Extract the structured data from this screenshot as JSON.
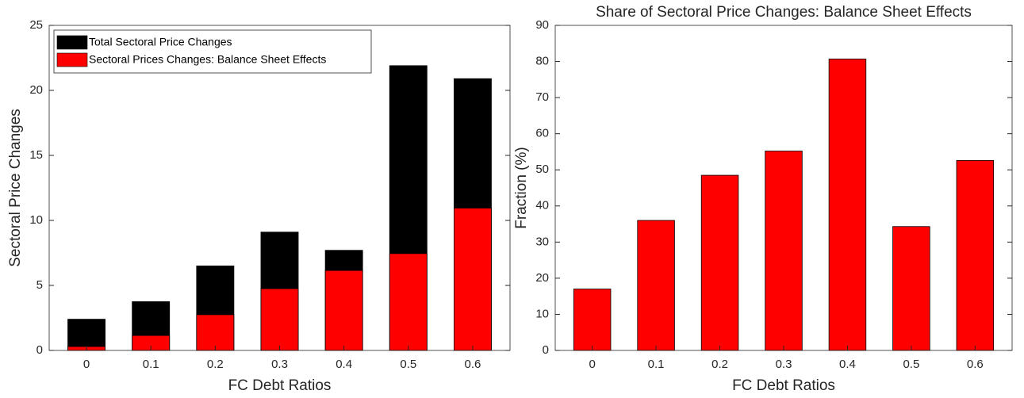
{
  "chart_data": [
    {
      "type": "bar",
      "overlay": true,
      "xlabel": "FC Debt Ratios",
      "ylabel": "Sectoral Price Changes",
      "categories": [
        "0",
        "0.1",
        "0.2",
        "0.3",
        "0.4",
        "0.5",
        "0.6"
      ],
      "series": [
        {
          "name": "Total Sectoral Price Changes",
          "color": "#000000",
          "values": [
            2.4,
            3.75,
            6.5,
            9.1,
            7.7,
            21.9,
            20.9
          ]
        },
        {
          "name": "Sectoral Prices Changes: Balance Sheet Effects",
          "color": "#ff0000",
          "values": [
            0.3,
            1.15,
            2.75,
            4.75,
            6.15,
            7.45,
            10.95
          ]
        }
      ],
      "ylim": [
        0,
        25
      ],
      "yticks": [
        0,
        5,
        10,
        15,
        20,
        25
      ],
      "legend": "northwest"
    },
    {
      "type": "bar",
      "title": "Share of Sectoral Price Changes: Balance Sheet Effects",
      "xlabel": "FC Debt Ratios",
      "ylabel": "Fraction (%)",
      "categories": [
        "0",
        "0.1",
        "0.2",
        "0.3",
        "0.4",
        "0.5",
        "0.6"
      ],
      "series": [
        {
          "color": "#ff0000",
          "values": [
            17,
            36,
            48.5,
            55.2,
            80.7,
            34.3,
            52.6
          ]
        }
      ],
      "ylim": [
        0,
        90
      ],
      "yticks": [
        0,
        10,
        20,
        30,
        40,
        50,
        60,
        70,
        80,
        90
      ]
    }
  ]
}
